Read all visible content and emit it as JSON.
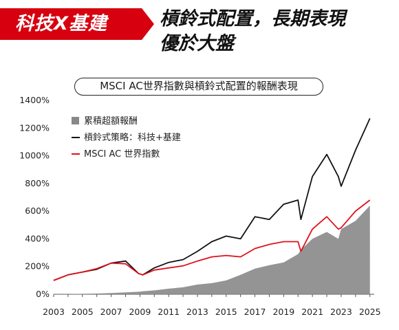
{
  "tag": "科技X基建",
  "headline": [
    "槓鈴式配置，長期表現",
    "優於大盤"
  ],
  "chart_data": {
    "type": "line",
    "title": "MSCI AC世界指數與槓鈴式配置的報酬表現",
    "x": [
      2003,
      2004,
      2005,
      2006,
      2007,
      2008,
      2008.9,
      2009.2,
      2010,
      2011,
      2012,
      2013,
      2014,
      2015,
      2016,
      2017,
      2018,
      2019,
      2020,
      2020.2,
      2021,
      2022,
      2022.8,
      2023,
      2024,
      2025
    ],
    "series": [
      {
        "name": "累積超額報酬",
        "type": "area",
        "color": "#888888",
        "values": [
          0,
          1,
          3,
          5,
          9,
          14,
          18,
          22,
          28,
          40,
          50,
          70,
          80,
          100,
          140,
          185,
          210,
          230,
          290,
          320,
          400,
          450,
          400,
          470,
          530,
          640
        ]
      },
      {
        "name": "槓鈴式策略：科技+基建",
        "type": "line",
        "color": "#111111",
        "values": [
          100,
          140,
          160,
          180,
          225,
          240,
          150,
          140,
          190,
          230,
          250,
          310,
          380,
          420,
          400,
          560,
          540,
          650,
          680,
          540,
          850,
          1010,
          850,
          780,
          1040,
          1270
        ]
      },
      {
        "name": "MSCI AC 世界指數",
        "type": "line",
        "color": "#e0101a",
        "values": [
          100,
          140,
          160,
          185,
          225,
          220,
          150,
          140,
          175,
          190,
          205,
          240,
          270,
          280,
          270,
          330,
          360,
          380,
          380,
          310,
          470,
          560,
          470,
          480,
          600,
          680
        ]
      }
    ],
    "y_ticks": [
      "0%",
      "200%",
      "400%",
      "600%",
      "800%",
      "1000%",
      "1200%",
      "1400%"
    ],
    "x_ticks": [
      "2003",
      "2005",
      "2007",
      "2009",
      "2011",
      "2013",
      "2015",
      "2017",
      "2019",
      "2021",
      "2023",
      "2025"
    ],
    "ylim": [
      0,
      1400
    ],
    "xlim": [
      2003,
      2025.3
    ],
    "grid": false,
    "legend_position": "top-left"
  }
}
